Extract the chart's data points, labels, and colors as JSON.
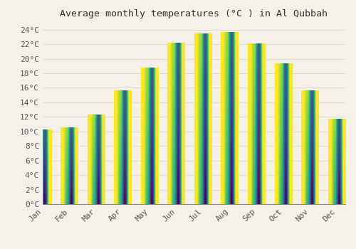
{
  "title": "Average monthly temperatures (°C ) in Al Qubbah",
  "months": [
    "Jan",
    "Feb",
    "Mar",
    "Apr",
    "May",
    "Jun",
    "Jul",
    "Aug",
    "Sep",
    "Oct",
    "Nov",
    "Dec"
  ],
  "values": [
    10.2,
    10.5,
    12.3,
    15.6,
    18.7,
    22.2,
    23.4,
    23.6,
    22.1,
    19.3,
    15.6,
    11.7
  ],
  "bar_color_top": "#FFD060",
  "bar_color_bottom": "#FFA500",
  "background_color": "#F5F0E8",
  "plot_bg_color": "#F5F0E8",
  "grid_color": "#DDDDCC",
  "ylim": [
    0,
    25
  ],
  "yticks": [
    0,
    2,
    4,
    6,
    8,
    10,
    12,
    14,
    16,
    18,
    20,
    22,
    24
  ],
  "title_fontsize": 9.5,
  "tick_fontsize": 8,
  "font_family": "monospace",
  "bar_width": 0.65
}
